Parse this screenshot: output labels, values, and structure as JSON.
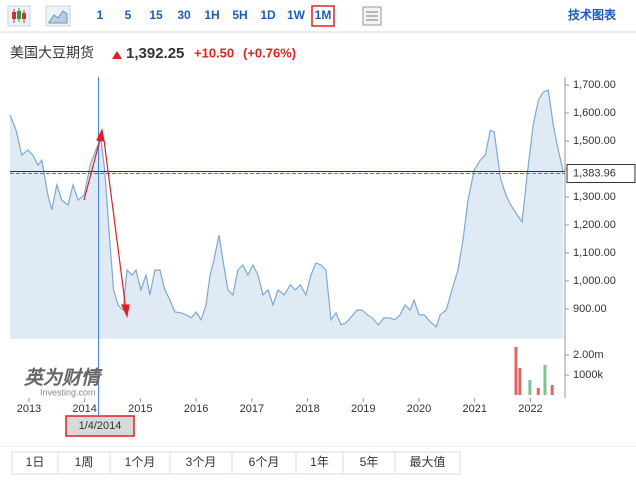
{
  "toolbar": {
    "intervals": [
      "1",
      "5",
      "15",
      "30",
      "1H",
      "5H",
      "1D",
      "1W",
      "1M"
    ],
    "technical": "技术图表"
  },
  "header": {
    "name": "美国大豆期货",
    "price": "1,392.25",
    "change": "+10.50",
    "change_pct": "(+0.76%)"
  },
  "watermark": {
    "brand": "英为财情",
    "site": "Investing.com"
  },
  "ranges": [
    "1日",
    "1周",
    "1个月",
    "3个月",
    "6个月",
    "1年",
    "5年",
    "最大值"
  ],
  "chart_data": {
    "type": "area",
    "color": "#7fa9d1",
    "fill": "#dfeaf5",
    "x": [
      2012.66,
      2012.77,
      2012.87,
      2012.98,
      2013.07,
      2013.16,
      2013.23,
      2013.34,
      2013.41,
      2013.5,
      2013.59,
      2013.7,
      2013.79,
      2013.88,
      2013.99,
      2014.1,
      2014.2,
      2014.29,
      2014.36,
      2014.45,
      2014.52,
      2014.6,
      2014.69,
      2014.76,
      2014.85,
      2014.92,
      2015.01,
      2015.1,
      2015.17,
      2015.26,
      2015.35,
      2015.44,
      2015.53,
      2015.62,
      2015.73,
      2015.82,
      2015.91,
      2016.0,
      2016.09,
      2016.18,
      2016.25,
      2016.32,
      2016.41,
      2016.48,
      2016.57,
      2016.66,
      2016.75,
      2016.84,
      2016.93,
      2017.02,
      2017.11,
      2017.2,
      2017.29,
      2017.38,
      2017.47,
      2017.58,
      2017.69,
      2017.78,
      2017.87,
      2017.97,
      2018.06,
      2018.15,
      2018.24,
      2018.33,
      2018.42,
      2018.51,
      2018.6,
      2018.69,
      2018.8,
      2018.89,
      2018.98,
      2019.07,
      2019.16,
      2019.27,
      2019.37,
      2019.48,
      2019.57,
      2019.66,
      2019.75,
      2019.84,
      2019.91,
      2020.0,
      2020.09,
      2020.2,
      2020.31,
      2020.38,
      2020.49,
      2020.59,
      2020.7,
      2020.79,
      2020.88,
      2020.99,
      2021.1,
      2021.19,
      2021.28,
      2021.35,
      2021.46,
      2021.56,
      2021.65,
      2021.76,
      2021.85,
      2021.94,
      2022.05,
      2022.14,
      2022.23,
      2022.32,
      2022.41,
      2022.48,
      2022.59
    ],
    "values": [
      1593,
      1539,
      1450,
      1468,
      1450,
      1414,
      1432,
      1307,
      1254,
      1343,
      1289,
      1271,
      1343,
      1289,
      1307,
      1414,
      1468,
      1511,
      1396,
      1146,
      968,
      914,
      896,
      1039,
      1021,
      1039,
      968,
      1021,
      950,
      1039,
      1039,
      968,
      932,
      889,
      886,
      879,
      868,
      889,
      861,
      914,
      1021,
      1075,
      1164,
      1075,
      968,
      950,
      1039,
      1057,
      1021,
      1057,
      1021,
      950,
      968,
      914,
      968,
      950,
      986,
      968,
      986,
      950,
      1021,
      1064,
      1057,
      1039,
      861,
      886,
      843,
      850,
      875,
      896,
      896,
      879,
      868,
      843,
      868,
      868,
      861,
      879,
      914,
      896,
      932,
      879,
      879,
      854,
      836,
      879,
      896,
      968,
      1039,
      1146,
      1289,
      1396,
      1432,
      1450,
      1539,
      1532,
      1368,
      1307,
      1271,
      1236,
      1211,
      1379,
      1557,
      1646,
      1675,
      1682,
      1557,
      1486,
      1389
    ],
    "xlim": [
      2012.66,
      2022.62
    ],
    "ylim": [
      796,
      1729
    ],
    "xticks": [
      2013,
      2014,
      2015,
      2016,
      2017,
      2018,
      2019,
      2020,
      2021,
      2022
    ],
    "yticks": [
      {
        "value": 1700,
        "label": "1,700.00"
      },
      {
        "value": 1600,
        "label": "1,600.00"
      },
      {
        "value": 1500,
        "label": "1,500.00"
      },
      {
        "value": 1400,
        "label": "1,400.00"
      },
      {
        "value": 1300,
        "label": "1,300.00"
      },
      {
        "value": 1200,
        "label": "1,200.00"
      },
      {
        "value": 1100,
        "label": "1,100.00"
      },
      {
        "value": 1000,
        "label": "1,000.00"
      },
      {
        "value": 900,
        "label": "900.00"
      }
    ],
    "current": {
      "value": 1383.96,
      "label": "1,383.96"
    },
    "crosshair": {
      "x": 2014.25,
      "label": "1/4/2014"
    },
    "volume": {
      "x": [
        2021.74,
        2021.81,
        2021.99,
        2022.14,
        2022.26,
        2022.39
      ],
      "values": [
        2400000,
        1350000,
        750000,
        350000,
        1500000,
        500000
      ],
      "colors": [
        "#e06666",
        "#e06666",
        "#7cc48e",
        "#e06666",
        "#7cc48e",
        "#e06666"
      ],
      "ylim": [
        0,
        2750000
      ],
      "yticks": [
        {
          "value": 2000000,
          "label": "2.00m"
        },
        {
          "value": 1000000,
          "label": "1000k"
        }
      ]
    }
  }
}
